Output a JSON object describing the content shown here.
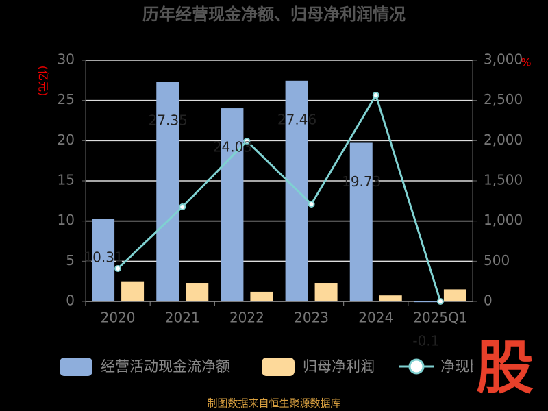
{
  "chart_data": {
    "type": "bar-line",
    "title": "历年经营现金净额、归母净利润情况",
    "ylabel": "(亿元)",
    "y2label": "%",
    "categories": [
      "2020",
      "2021",
      "2022",
      "2023",
      "2024",
      "2025Q1"
    ],
    "series": [
      {
        "name": "经营活动现金流净额",
        "type": "bar",
        "color": "#8eaedc",
        "values": [
          10.31,
          27.35,
          24.03,
          27.46,
          19.73,
          -0.1
        ]
      },
      {
        "name": "归母净利润",
        "type": "bar",
        "color": "#fdd99a",
        "values": [
          2.5,
          2.3,
          1.2,
          2.3,
          0.75,
          1.5
        ]
      },
      {
        "name": "净现比",
        "type": "line",
        "axis": "y2",
        "color": "#7fd1d1",
        "values": [
          409,
          1176,
          1994,
          1210,
          2565,
          0
        ]
      }
    ],
    "ylim": [
      0,
      30
    ],
    "yticks": [
      0,
      5,
      10,
      15,
      20,
      25,
      30
    ],
    "y2lim": [
      0,
      3000
    ],
    "y2ticks": [
      0,
      500,
      {
        "value": 1000,
        "label": "1,000"
      },
      {
        "value": 1500,
        "label": "1,500"
      },
      {
        "value": 2000,
        "label": "2,000"
      },
      {
        "value": 2500,
        "label": "2,500"
      },
      {
        "value": 3000,
        "label": "3,000"
      }
    ],
    "grid": true,
    "watermark": "股",
    "source": "制图数据来自恒生聚源数据库"
  }
}
